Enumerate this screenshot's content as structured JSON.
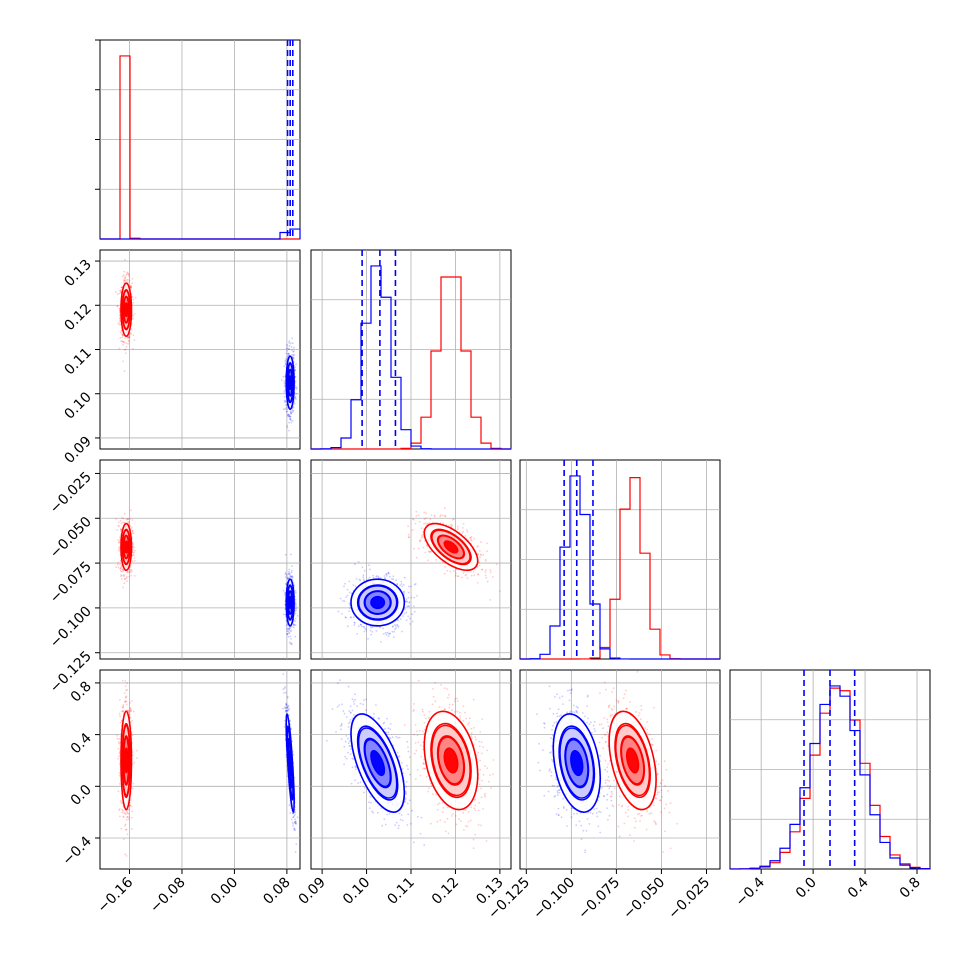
{
  "chart_data": {
    "type": "corner",
    "grid": true,
    "series": [
      {
        "color": "#ff0000"
      },
      {
        "color": "#0000ff"
      }
    ],
    "params": [
      {
        "range": [
          -0.205,
          0.1
        ],
        "ticks": [
          -0.16,
          -0.08,
          0.0,
          0.08
        ],
        "tick_labels": [
          "−0.16",
          "−0.08",
          "0.00",
          "0.08"
        ],
        "mean": {
          "red": -0.165,
          "blue": 0.085
        },
        "sd": {
          "red": 0.004,
          "blue": 0.003
        },
        "quantiles": {
          "blue": [
            0.081,
            0.085,
            0.089
          ]
        }
      },
      {
        "range": [
          0.0875,
          0.1325
        ],
        "ticks": [
          0.09,
          0.1,
          0.11,
          0.12,
          0.13
        ],
        "tick_labels": [
          "0.09",
          "0.10",
          "0.11",
          "0.12",
          "0.13"
        ],
        "mean": {
          "red": 0.119,
          "blue": 0.1025
        },
        "sd": {
          "red": 0.003,
          "blue": 0.003
        },
        "quantiles": {
          "blue": [
            0.099,
            0.103,
            0.1065
          ]
        }
      },
      {
        "range": [
          -0.1285,
          -0.0175
        ],
        "ticks": [
          -0.125,
          -0.1,
          -0.075,
          -0.05,
          -0.025
        ],
        "tick_labels": [
          "−0.125",
          "−0.100",
          "−0.075",
          "−0.050",
          "−0.025"
        ],
        "mean": {
          "red": -0.066,
          "blue": -0.097
        },
        "sd": {
          "red": 0.0065,
          "blue": 0.0065
        },
        "quantiles": {
          "blue": [
            -0.104,
            -0.097,
            -0.088
          ]
        }
      },
      {
        "range": [
          -0.64,
          0.9
        ],
        "ticks": [
          -0.4,
          0.0,
          0.4,
          0.8
        ],
        "tick_labels": [
          "−0.4",
          "0.0",
          "0.4",
          "0.8"
        ],
        "mean": {
          "red": 0.2,
          "blue": 0.18
        },
        "sd": {
          "red": 0.19,
          "blue": 0.19
        },
        "quantiles": {
          "blue": [
            -0.07,
            0.13,
            0.32
          ]
        }
      }
    ],
    "correlations": {
      "red": [
        [
          1,
          0,
          0,
          0
        ],
        [
          0,
          1,
          -0.6,
          -0.3
        ],
        [
          0,
          -0.6,
          1,
          -0.4
        ],
        [
          0,
          -0.3,
          -0.4,
          1
        ]
      ],
      "blue": [
        [
          1,
          0,
          0,
          -0.8
        ],
        [
          0,
          1,
          0,
          -0.6
        ],
        [
          0,
          0,
          1,
          -0.3
        ],
        [
          -0.8,
          -0.6,
          -0.3,
          1
        ]
      ]
    },
    "contour_levels": [
      0.5,
      1.0,
      1.5,
      2.0
    ]
  }
}
